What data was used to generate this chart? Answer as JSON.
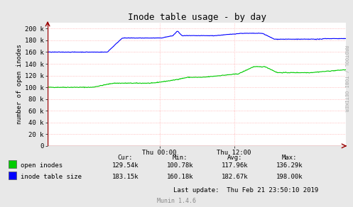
{
  "title": "Inode table usage - by day",
  "ylabel": "number of open inodes",
  "background_color": "#e8e8e8",
  "plot_bg_color": "#ffffff",
  "grid_color": "#ffaaaa",
  "ylim": [
    0,
    210000
  ],
  "yticks": [
    0,
    20000,
    40000,
    60000,
    80000,
    100000,
    120000,
    140000,
    160000,
    180000,
    200000
  ],
  "ytick_labels": [
    "0",
    "20 k",
    "40 k",
    "60 k",
    "80 k",
    "100 k",
    "120 k",
    "140 k",
    "160 k",
    "180 k",
    "200 k"
  ],
  "xtick_positions": [
    0.375,
    0.625
  ],
  "xtick_labels": [
    "Thu 00:00",
    "Thu 12:00"
  ],
  "green_color": "#00cc00",
  "blue_color": "#0000ff",
  "legend_items": [
    "open inodes",
    "inode table size"
  ],
  "stats_green": [
    "129.54k",
    "100.78k",
    "117.96k",
    "136.29k"
  ],
  "stats_blue": [
    "183.15k",
    "160.18k",
    "182.67k",
    "198.00k"
  ],
  "last_update": "Last update:  Thu Feb 21 23:50:10 2019",
  "munin_text": "Munin 1.4.6",
  "watermark": "RRDTOOL / TOBI OETIKER",
  "title_fontsize": 9,
  "axis_fontsize": 6.5,
  "legend_fontsize": 6.5
}
